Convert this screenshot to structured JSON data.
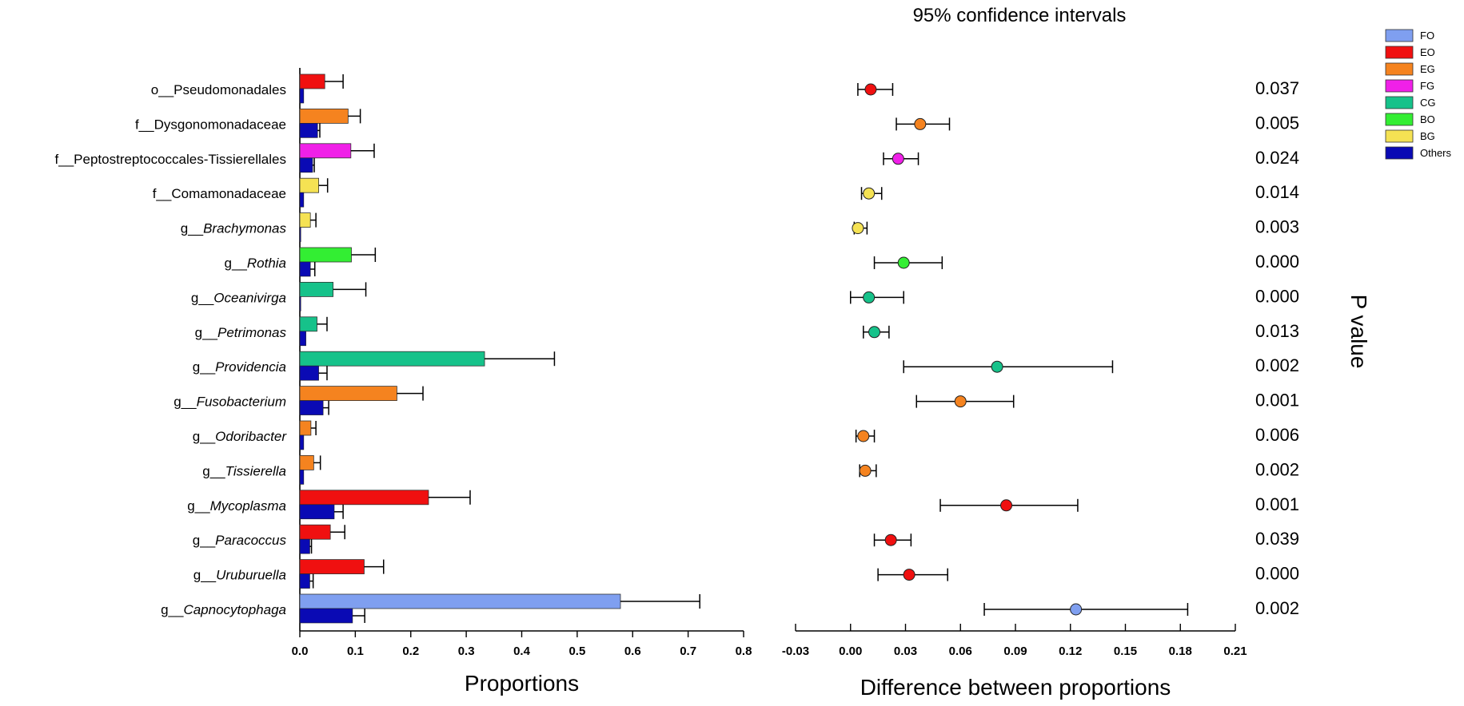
{
  "chart_data": [
    {
      "type": "bar",
      "orientation": "horizontal",
      "xlabel": "Proportions",
      "xlim": [
        0,
        0.8
      ],
      "xticks": [
        0.0,
        0.1,
        0.2,
        0.3,
        0.4,
        0.5,
        0.6,
        0.7,
        0.8
      ],
      "xtick_labels": [
        "0.0",
        "0.1",
        "0.2",
        "0.3",
        "0.4",
        "0.5",
        "0.6",
        "0.7",
        "0.8"
      ],
      "categories": [
        {
          "prefix": "o__",
          "name": "Pseudomonadales",
          "italic": false
        },
        {
          "prefix": "f__",
          "name": "Dysgonomonadaceae",
          "italic": false
        },
        {
          "prefix": "f__",
          "name": "Peptostreptococcales-Tissierellales",
          "italic": false
        },
        {
          "prefix": "f__",
          "name": "Comamonadaceae",
          "italic": false
        },
        {
          "prefix": "g__",
          "name": "Brachymonas",
          "italic": true
        },
        {
          "prefix": "g__",
          "name": "Rothia",
          "italic": true
        },
        {
          "prefix": "g__",
          "name": "Oceanivirga",
          "italic": true
        },
        {
          "prefix": "g__",
          "name": "Petrimonas",
          "italic": true
        },
        {
          "prefix": "g__",
          "name": "Providencia",
          "italic": true
        },
        {
          "prefix": "g__",
          "name": "Fusobacterium",
          "italic": true
        },
        {
          "prefix": "g__",
          "name": "Odoribacter",
          "italic": true
        },
        {
          "prefix": "g__",
          "name": "Tissierella",
          "italic": true
        },
        {
          "prefix": "g__",
          "name": "Mycoplasma",
          "italic": true
        },
        {
          "prefix": "g__",
          "name": "Paracoccus",
          "italic": true
        },
        {
          "prefix": "g__",
          "name": "Uruburuella",
          "italic": true
        },
        {
          "prefix": "g__",
          "name": "Capnocytophaga",
          "italic": true
        }
      ],
      "group_for_category": [
        "EO",
        "EG",
        "FG",
        "BG",
        "BG",
        "BO",
        "CG",
        "CG",
        "CG",
        "EG",
        "EG",
        "EG",
        "EO",
        "EO",
        "EO",
        "FO"
      ],
      "series": [
        {
          "name": "group",
          "values": [
            0.045,
            0.087,
            0.092,
            0.034,
            0.019,
            0.093,
            0.06,
            0.031,
            0.333,
            0.175,
            0.02,
            0.025,
            0.232,
            0.055,
            0.116,
            0.578
          ],
          "errors": [
            0.033,
            0.022,
            0.042,
            0.016,
            0.01,
            0.043,
            0.059,
            0.018,
            0.126,
            0.047,
            0.009,
            0.012,
            0.075,
            0.026,
            0.035,
            0.143
          ]
        },
        {
          "name": "Others",
          "values": [
            0.007,
            0.032,
            0.023,
            0.007,
            0.001,
            0.019,
            0.0,
            0.011,
            0.034,
            0.042,
            0.007,
            0.007,
            0.062,
            0.018,
            0.018,
            0.095
          ],
          "errors": [
            0.0,
            0.004,
            0.003,
            0.0,
            0.0,
            0.008,
            0.0,
            0.0,
            0.015,
            0.01,
            0.0,
            0.0,
            0.016,
            0.003,
            0.006,
            0.022
          ]
        }
      ]
    },
    {
      "type": "scatter",
      "subtype": "confidence-interval",
      "title": "95% confidence intervals",
      "xlabel": "Difference between proportions",
      "xlim": [
        -0.03,
        0.21
      ],
      "xticks": [
        -0.03,
        0.0,
        0.03,
        0.06,
        0.09,
        0.12,
        0.15,
        0.18,
        0.21
      ],
      "xtick_labels": [
        "-0.03",
        "0.00",
        "0.03",
        "0.06",
        "0.09",
        "0.12",
        "0.15",
        "0.18",
        "0.21"
      ],
      "points": [
        {
          "estimate": 0.011,
          "ci_low": 0.004,
          "ci_high": 0.023
        },
        {
          "estimate": 0.038,
          "ci_low": 0.025,
          "ci_high": 0.054
        },
        {
          "estimate": 0.026,
          "ci_low": 0.018,
          "ci_high": 0.037
        },
        {
          "estimate": 0.01,
          "ci_low": 0.006,
          "ci_high": 0.017
        },
        {
          "estimate": 0.004,
          "ci_low": 0.002,
          "ci_high": 0.009
        },
        {
          "estimate": 0.029,
          "ci_low": 0.013,
          "ci_high": 0.05
        },
        {
          "estimate": 0.01,
          "ci_low": 0.0,
          "ci_high": 0.029
        },
        {
          "estimate": 0.013,
          "ci_low": 0.007,
          "ci_high": 0.021
        },
        {
          "estimate": 0.08,
          "ci_low": 0.029,
          "ci_high": 0.143
        },
        {
          "estimate": 0.06,
          "ci_low": 0.036,
          "ci_high": 0.089
        },
        {
          "estimate": 0.007,
          "ci_low": 0.003,
          "ci_high": 0.013
        },
        {
          "estimate": 0.008,
          "ci_low": 0.005,
          "ci_high": 0.014
        },
        {
          "estimate": 0.085,
          "ci_low": 0.049,
          "ci_high": 0.124
        },
        {
          "estimate": 0.022,
          "ci_low": 0.013,
          "ci_high": 0.033
        },
        {
          "estimate": 0.032,
          "ci_low": 0.015,
          "ci_high": 0.053
        },
        {
          "estimate": 0.123,
          "ci_low": 0.073,
          "ci_high": 0.184
        }
      ],
      "p_value_label": "P value",
      "p_values": [
        "0.037",
        "0.005",
        "0.024",
        "0.014",
        "0.003",
        "0.000",
        "0.000",
        "0.013",
        "0.002",
        "0.001",
        "0.006",
        "0.002",
        "0.001",
        "0.039",
        "0.000",
        "0.002"
      ]
    }
  ],
  "legend": [
    {
      "label": "FO",
      "color": "#7f9ff0"
    },
    {
      "label": "EO",
      "color": "#f01010"
    },
    {
      "label": "EG",
      "color": "#f5831f"
    },
    {
      "label": "FG",
      "color": "#f020e8"
    },
    {
      "label": "CG",
      "color": "#16c28a"
    },
    {
      "label": "BO",
      "color": "#33ee33"
    },
    {
      "label": "BG",
      "color": "#f5e253"
    },
    {
      "label": "Others",
      "color": "#0a0ab4"
    }
  ]
}
